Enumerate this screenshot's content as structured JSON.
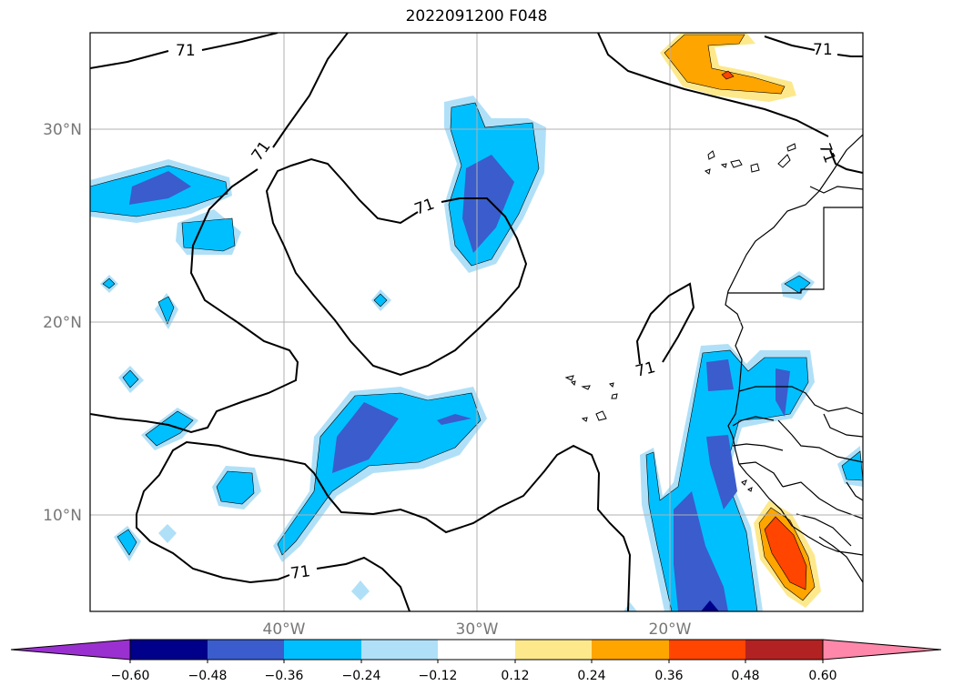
{
  "title": "2022091200 F048",
  "map": {
    "lat_labels": [
      "30°N",
      "20°N",
      "10°N"
    ],
    "lon_labels": [
      "40°W",
      "30°W",
      "20°W"
    ],
    "contour_label": "71"
  },
  "colorbar": {
    "ticks": [
      "−0.60",
      "−0.48",
      "−0.36",
      "−0.24",
      "−0.12",
      "0.12",
      "0.24",
      "0.36",
      "0.48",
      "0.60"
    ],
    "colors": [
      "#9b30d0",
      "#00008b",
      "#3a5ccc",
      "#00bfff",
      "#b0e0f8",
      "#ffffff",
      "#fde98c",
      "#ffa500",
      "#ff4500",
      "#b22222",
      "#ff88aa"
    ]
  }
}
